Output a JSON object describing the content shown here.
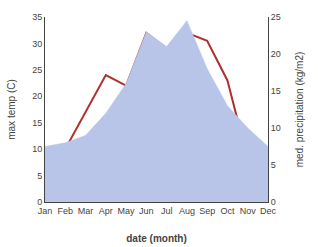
{
  "chart_data": {
    "type": "line",
    "categories": [
      "Jan",
      "Feb",
      "Mar",
      "Apr",
      "May",
      "Jun",
      "Jul",
      "Aug",
      "Sep",
      "Oct",
      "Nov",
      "Dec"
    ],
    "series": [
      {
        "type": "area",
        "color": "#b8c4e8",
        "axis": "y2",
        "values": [
          7.5,
          8.0,
          9.0,
          12.0,
          16.0,
          23.0,
          21.0,
          24.5,
          18.0,
          13.0,
          10.0,
          7.5
        ]
      },
      {
        "type": "line",
        "color": "#b03030",
        "values": [
          3.0,
          10.0,
          17.0,
          24.0,
          22.0,
          32.0,
          29.0,
          32.0,
          30.5,
          23.0,
          8.0,
          8.0
        ]
      }
    ],
    "xlabel": "date (month)",
    "ylabel": "max temp (C)",
    "y2label": "med. precipitation (kg/m2)",
    "ylim": [
      0,
      35
    ],
    "yticks": [
      0,
      5,
      10,
      15,
      20,
      25,
      30,
      35
    ],
    "y2lim": [
      0,
      25
    ],
    "y2ticks": [
      0,
      5,
      10,
      15,
      20,
      25
    ],
    "grid": false
  }
}
